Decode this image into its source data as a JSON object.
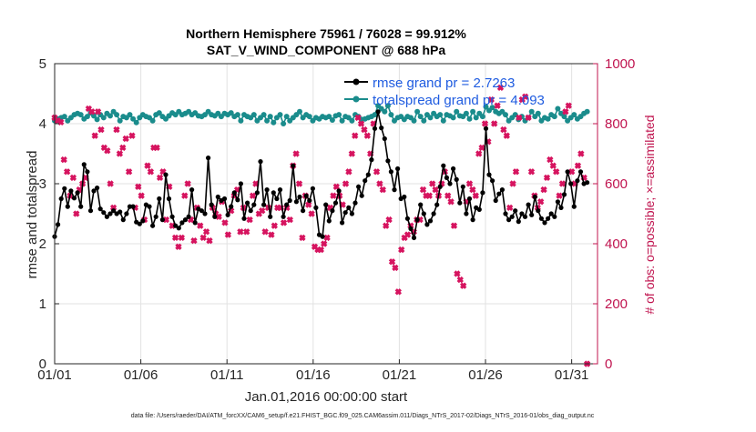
{
  "chart_data": {
    "type": "line",
    "title_line1": "Northern Hemisphere 75961 / 76028 = 99.912%",
    "title_line2": "SAT_V_WIND_COMPONENT @ 688 hPa",
    "xlabel": "Jan.01,2016 00:00:00 start",
    "ylabel_left": "rmse and totalspread",
    "ylabel_right": "# of obs: o=possible; ×=assimilated",
    "footer": "data file: /Users/raeder/DAI/ATM_forcXX/CAM6_setup/f.e21.FHIST_BGC.f09_025.CAM6assim.011/Diags_NTrS_2017-02/Diags_NTrS_2016-01/obs_diag_output.nc",
    "x_ticks": [
      {
        "day": 0,
        "label": "01/01"
      },
      {
        "day": 5,
        "label": "01/06"
      },
      {
        "day": 10,
        "label": "01/11"
      },
      {
        "day": 15,
        "label": "01/16"
      },
      {
        "day": 20,
        "label": "01/21"
      },
      {
        "day": 25,
        "label": "01/26"
      },
      {
        "day": 30,
        "label": "01/31"
      }
    ],
    "xlim_days": [
      0,
      31.5
    ],
    "ylim_left": [
      0,
      5
    ],
    "yticks_left": [
      "0",
      "1",
      "2",
      "3",
      "4",
      "5"
    ],
    "ylim_right": [
      0,
      1000
    ],
    "yticks_right": [
      "0",
      "200",
      "400",
      "600",
      "800",
      "1000"
    ],
    "grid": true,
    "legend_position": "top-right",
    "colors": {
      "rmse": "#000000",
      "totalspread": "#1a8c8c",
      "obs": "#d6145f",
      "legend_text": "#1f5ce0",
      "right_axis": "#c0144f"
    },
    "series": [
      {
        "name": "rmse grand pr = 2.7263",
        "axis": "left",
        "values": [
          2.12,
          2.32,
          2.75,
          2.92,
          2.62,
          2.88,
          2.76,
          2.85,
          2.62,
          3.32,
          3.2,
          2.55,
          2.88,
          2.93,
          2.58,
          2.52,
          2.45,
          2.5,
          2.55,
          2.5,
          2.53,
          2.4,
          2.5,
          2.62,
          2.62,
          2.36,
          2.33,
          2.38,
          2.65,
          2.62,
          2.3,
          2.45,
          2.75,
          2.4,
          3.15,
          2.75,
          2.45,
          2.3,
          2.26,
          2.35,
          2.4,
          2.45,
          2.9,
          2.35,
          2.58,
          2.55,
          2.5,
          3.43,
          2.65,
          2.45,
          2.78,
          2.72,
          2.75,
          2.48,
          2.62,
          2.85,
          2.73,
          3.0,
          2.42,
          2.68,
          2.55,
          2.65,
          2.85,
          3.37,
          2.65,
          2.9,
          2.45,
          2.85,
          2.75,
          2.9,
          2.45,
          2.65,
          2.72,
          3.3,
          2.7,
          2.78,
          2.55,
          2.8,
          2.72,
          2.92,
          2.6,
          2.15,
          2.12,
          2.65,
          2.38,
          2.55,
          2.68,
          2.88,
          2.35,
          2.52,
          2.6,
          2.5,
          2.68,
          2.95,
          2.8,
          3.05,
          3.15,
          3.4,
          3.92,
          4.2,
          3.93,
          3.75,
          3.38,
          3.2,
          2.9,
          3.25,
          2.75,
          2.78,
          2.42,
          2.25,
          2.1,
          2.4,
          2.65,
          2.5,
          2.32,
          2.38,
          2.5,
          2.65,
          2.95,
          3.3,
          3.1,
          3.0,
          3.25,
          3.07,
          2.68,
          2.95,
          2.5,
          2.75,
          2.4,
          2.6,
          2.57,
          2.85,
          3.92,
          3.15,
          3.05,
          2.72,
          2.83,
          2.9,
          2.5,
          2.4,
          2.45,
          2.55,
          2.37,
          2.5,
          2.45,
          2.65,
          2.48,
          2.78,
          2.55,
          2.42,
          2.35,
          2.42,
          2.5,
          2.45,
          2.7,
          2.6,
          2.82,
          3.2,
          3.0,
          2.62,
          3.05,
          3.2,
          3.0,
          3.02
        ]
      },
      {
        "name": "totalspread grand pr = 4.093",
        "axis": "left",
        "values": [
          4.05,
          4.08,
          4.1,
          4.12,
          4.05,
          4.1,
          4.15,
          4.17,
          4.15,
          4.08,
          4.12,
          4.18,
          4.13,
          4.07,
          4.15,
          4.1,
          4.17,
          4.13,
          4.2,
          4.15,
          4.05,
          4.12,
          4.1,
          4.15,
          4.08,
          4.02,
          4.1,
          4.15,
          4.12,
          4.1,
          4.05,
          4.15,
          4.18,
          4.12,
          4.08,
          4.13,
          4.18,
          4.15,
          4.2,
          4.15,
          4.17,
          4.2,
          4.15,
          4.18,
          4.13,
          4.12,
          4.15,
          4.2,
          4.15,
          4.13,
          4.17,
          4.12,
          4.17,
          4.15,
          4.18,
          4.12,
          4.15,
          4.05,
          4.15,
          4.12,
          4.1,
          4.15,
          4.05,
          4.1,
          4.15,
          4.05,
          4.12,
          4.02,
          4.1,
          4.15,
          4.0,
          4.12,
          4.05,
          4.1,
          4.15,
          4.2,
          4.1,
          4.15,
          4.12,
          4.05,
          4.1,
          4.08,
          4.12,
          4.1,
          4.12,
          4.06,
          4.13,
          4.15,
          4.05,
          4.12,
          4.1,
          4.05,
          4.15,
          4.12,
          4.07,
          4.08,
          4.1,
          4.12,
          4.15,
          4.3,
          4.25,
          4.2,
          4.3,
          4.15,
          4.05,
          4.1,
          4.12,
          4.07,
          4.12,
          4.1,
          4.05,
          4.2,
          4.12,
          4.05,
          4.15,
          4.1,
          4.17,
          4.12,
          4.15,
          4.05,
          4.15,
          4.13,
          4.1,
          4.2,
          4.13,
          4.12,
          4.17,
          4.08,
          4.2,
          4.1,
          4.17,
          4.12,
          4.28,
          4.22,
          4.27,
          4.2,
          4.17,
          4.2,
          4.15,
          4.05,
          4.1,
          4.15,
          4.07,
          4.12,
          4.05,
          4.1,
          4.2,
          4.12,
          4.17,
          4.05,
          4.1,
          4.08,
          4.15,
          4.12,
          4.25,
          4.17,
          4.12,
          4.05,
          4.1,
          4.15,
          4.08,
          4.12,
          4.17,
          4.2
        ]
      },
      {
        "name": "# of obs assimilated",
        "axis": "right",
        "values": [
          820,
          810,
          805,
          680,
          640,
          560,
          620,
          500,
          580,
          600,
          620,
          850,
          840,
          760,
          840,
          780,
          720,
          710,
          600,
          520,
          780,
          700,
          720,
          750,
          640,
          760,
          520,
          590,
          560,
          480,
          660,
          640,
          720,
          720,
          620,
          640,
          480,
          590,
          460,
          420,
          390,
          420,
          560,
          600,
          480,
          410,
          520,
          460,
          420,
          440,
          410,
          520,
          500,
          490,
          540,
          470,
          430,
          510,
          560,
          580,
          440,
          520,
          440,
          480,
          560,
          600,
          500,
          510,
          440,
          520,
          430,
          460,
          520,
          520,
          470,
          520,
          480,
          660,
          700,
          600,
          420,
          560,
          530,
          500,
          390,
          380,
          380,
          400,
          420,
          520,
          560,
          590,
          560,
          530,
          600,
          640,
          700,
          760,
          820,
          800,
          780,
          760,
          700,
          800,
          640,
          600,
          580,
          460,
          480,
          340,
          320,
          240,
          380,
          420,
          430,
          460,
          440,
          480,
          480,
          580,
          560,
          560,
          600,
          580,
          560,
          600,
          640,
          560,
          540,
          460,
          300,
          280,
          260,
          540,
          600,
          580,
          560,
          700,
          720,
          800,
          740,
          880,
          800,
          860,
          920,
          780,
          760,
          520,
          600,
          640,
          820,
          880,
          890,
          820,
          640,
          560,
          520,
          540,
          580,
          620,
          680,
          660,
          640,
          560,
          600,
          840,
          860,
          640,
          600,
          660,
          700,
          620,
          0
        ]
      }
    ]
  }
}
